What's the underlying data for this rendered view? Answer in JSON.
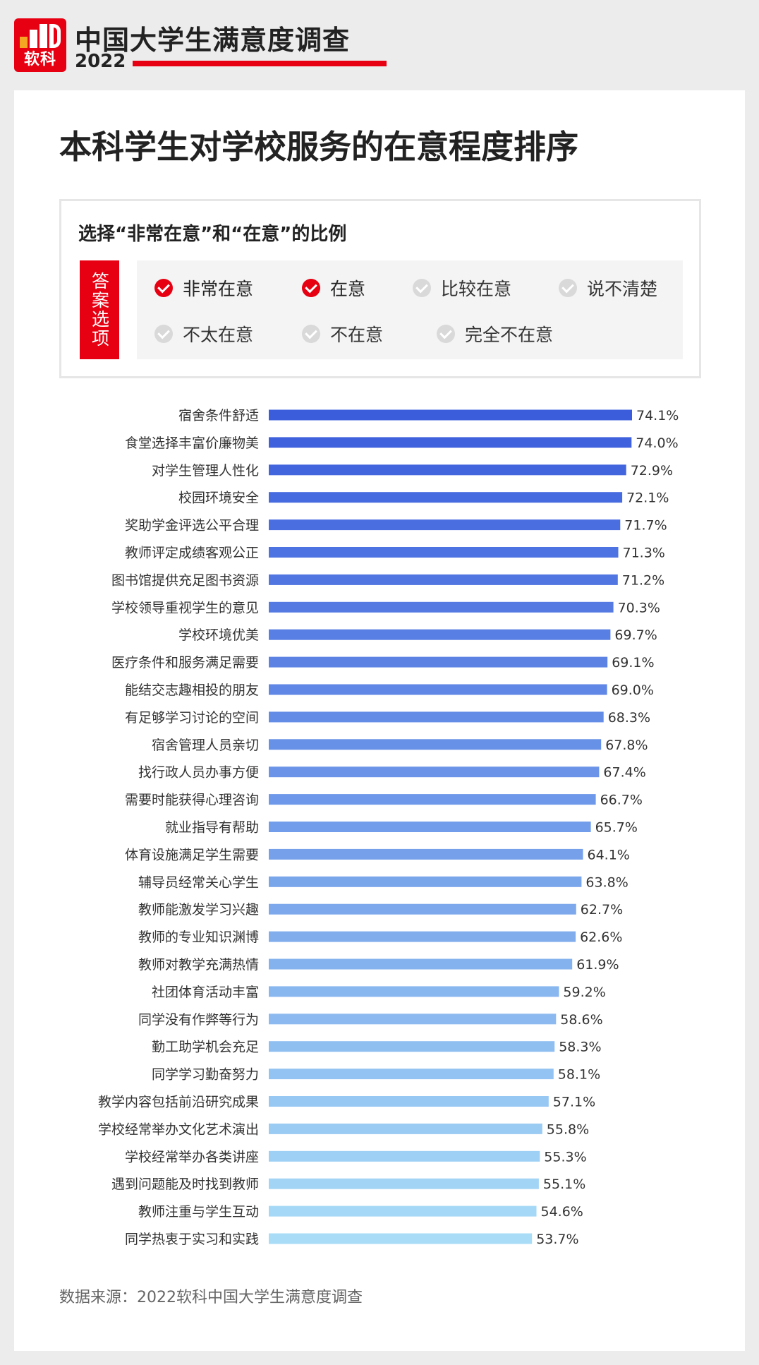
{
  "header": {
    "logo_text": "软科",
    "title": "中国大学生满意度调查",
    "year": "2022"
  },
  "page_title": "本科学生对学校服务的在意程度排序",
  "options": {
    "heading": "选择“非常在意”和“在意”的比例",
    "tag": "答案选项",
    "items": [
      {
        "label": "非常在意",
        "checked": true
      },
      {
        "label": "在意",
        "checked": true
      },
      {
        "label": "比较在意",
        "checked": false
      },
      {
        "label": "说不清楚",
        "checked": false
      },
      {
        "label": "不太在意",
        "checked": false
      },
      {
        "label": "不在意",
        "checked": false
      },
      {
        "label": "完全不在意",
        "checked": false
      }
    ]
  },
  "colors": {
    "accent": "#e60012",
    "bar_top": "#3b5ddc",
    "bar_bottom": "#a9dcf7"
  },
  "chart_data": {
    "type": "bar",
    "orientation": "horizontal",
    "categories": [
      "宿舍条件舒适",
      "食堂选择丰富价廉物美",
      "对学生管理人性化",
      "校园环境安全",
      "奖助学金评选公平合理",
      "教师评定成绩客观公正",
      "图书馆提供充足图书资源",
      "学校领导重视学生的意见",
      "学校环境优美",
      "医疗条件和服务满足需要",
      "能结交志趣相投的朋友",
      "有足够学习讨论的空间",
      "宿舍管理人员亲切",
      "找行政人员办事方便",
      "需要时能获得心理咨询",
      "就业指导有帮助",
      "体育设施满足学生需要",
      "辅导员经常关心学生",
      "教师能激发学习兴趣",
      "教师的专业知识渊博",
      "教师对教学充满热情",
      "社团体育活动丰富",
      "同学没有作弊等行为",
      "勤工助学机会充足",
      "同学学习勤奋努力",
      "教学内容包括前沿研究成果",
      "学校经常举办文化艺术演出",
      "学校经常举办各类讲座",
      "遇到问题能及时找到教师",
      "教师注重与学生互动",
      "同学热衷于实习和实践"
    ],
    "values": [
      74.1,
      74.0,
      72.9,
      72.1,
      71.7,
      71.3,
      71.2,
      70.3,
      69.7,
      69.1,
      69.0,
      68.3,
      67.8,
      67.4,
      66.7,
      65.7,
      64.1,
      63.8,
      62.7,
      62.6,
      61.9,
      59.2,
      58.6,
      58.3,
      58.1,
      57.1,
      55.8,
      55.3,
      55.1,
      54.6,
      53.7
    ],
    "value_suffix": "%",
    "xlim": [
      0,
      74.1
    ]
  },
  "source": "数据来源：2022软科中国大学生满意度调查"
}
